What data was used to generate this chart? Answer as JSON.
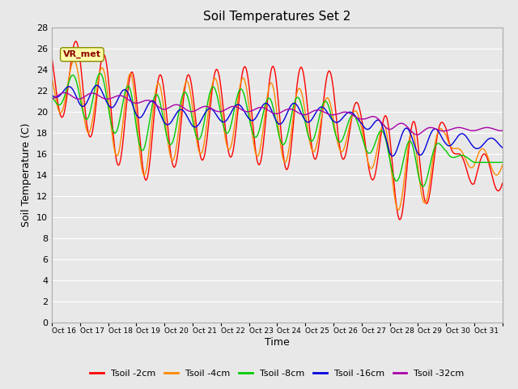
{
  "title": "Soil Temperatures Set 2",
  "xlabel": "Time",
  "ylabel": "Soil Temperature (C)",
  "ylim": [
    0,
    28
  ],
  "yticks": [
    0,
    2,
    4,
    6,
    8,
    10,
    12,
    14,
    16,
    18,
    20,
    22,
    24,
    26,
    28
  ],
  "xtick_labels": [
    "Oct 16",
    "Oct 17",
    "Oct 18",
    "Oct 19",
    "Oct 20",
    "Oct 21",
    "Oct 22",
    "Oct 23",
    "Oct 24",
    "Oct 25",
    "Oct 26",
    "Oct 27",
    "Oct 28",
    "Oct 29",
    "Oct 30",
    "Oct 31"
  ],
  "annotation_text": "VR_met",
  "fig_bg_color": "#e8e8e8",
  "plot_bg_color": "#e8e8e8",
  "grid_color": "#ffffff",
  "colors": {
    "2cm": "#ff0000",
    "4cm": "#ff8800",
    "8cm": "#00cc00",
    "16cm": "#0000dd",
    "32cm": "#aa00aa"
  },
  "legend_labels": [
    "Tsoil -2cm",
    "Tsoil -4cm",
    "Tsoil -8cm",
    "Tsoil -16cm",
    "Tsoil -32cm"
  ],
  "n_days": 16,
  "n_pts": 768,
  "day_peaks_2cm": [
    26.5,
    26.7,
    25.2,
    23.5,
    23.5,
    23.5,
    24.1,
    24.3,
    24.3,
    24.2,
    23.8,
    20.3,
    19.5,
    19.0,
    19.0,
    12.5
  ],
  "day_troughs_2cm": [
    20.0,
    18.5,
    16.0,
    13.0,
    14.5,
    15.2,
    15.8,
    15.5,
    14.0,
    15.5,
    15.5,
    15.5,
    10.2,
    9.0,
    16.0,
    16.0
  ],
  "day_peaks_4cm": [
    25.0,
    24.8,
    24.0,
    23.5,
    22.5,
    23.0,
    23.2,
    23.2,
    22.6,
    22.1,
    21.1,
    19.8,
    18.5,
    18.0,
    18.5,
    14.0
  ],
  "day_troughs_4cm": [
    20.5,
    18.5,
    16.8,
    13.5,
    15.2,
    15.8,
    16.5,
    16.2,
    14.8,
    16.2,
    16.2,
    16.2,
    11.2,
    9.5,
    16.5,
    16.5
  ],
  "day_peaks_8cm": [
    22.0,
    24.0,
    23.5,
    22.0,
    21.5,
    22.0,
    22.5,
    22.0,
    21.0,
    21.5,
    20.8,
    19.2,
    17.8,
    17.0,
    17.0,
    15.2
  ],
  "day_troughs_8cm": [
    21.0,
    19.5,
    18.5,
    16.2,
    16.8,
    17.2,
    18.0,
    17.8,
    16.8,
    17.2,
    17.2,
    16.8,
    13.8,
    12.2,
    15.8,
    15.2
  ],
  "day_peaks_16cm": [
    22.2,
    22.5,
    22.5,
    21.8,
    20.5,
    20.0,
    20.5,
    20.8,
    20.8,
    20.8,
    20.2,
    19.8,
    18.8,
    18.2,
    18.5,
    17.5
  ],
  "day_troughs_16cm": [
    21.5,
    20.5,
    20.5,
    19.5,
    18.8,
    18.5,
    19.0,
    19.2,
    18.8,
    19.0,
    19.0,
    18.8,
    15.8,
    15.8,
    16.8,
    16.5
  ],
  "day_peaks_32cm": [
    21.8,
    21.8,
    21.7,
    21.3,
    20.8,
    20.5,
    20.5,
    20.5,
    20.3,
    20.2,
    20.1,
    19.8,
    19.2,
    18.5,
    18.5,
    18.5
  ],
  "day_troughs_32cm": [
    21.2,
    21.2,
    21.2,
    20.8,
    20.2,
    20.0,
    20.0,
    20.0,
    19.8,
    19.7,
    19.7,
    19.3,
    18.3,
    17.8,
    18.2,
    18.2
  ],
  "phase_shifts": [
    0.0,
    0.06,
    0.13,
    0.25,
    0.4
  ]
}
